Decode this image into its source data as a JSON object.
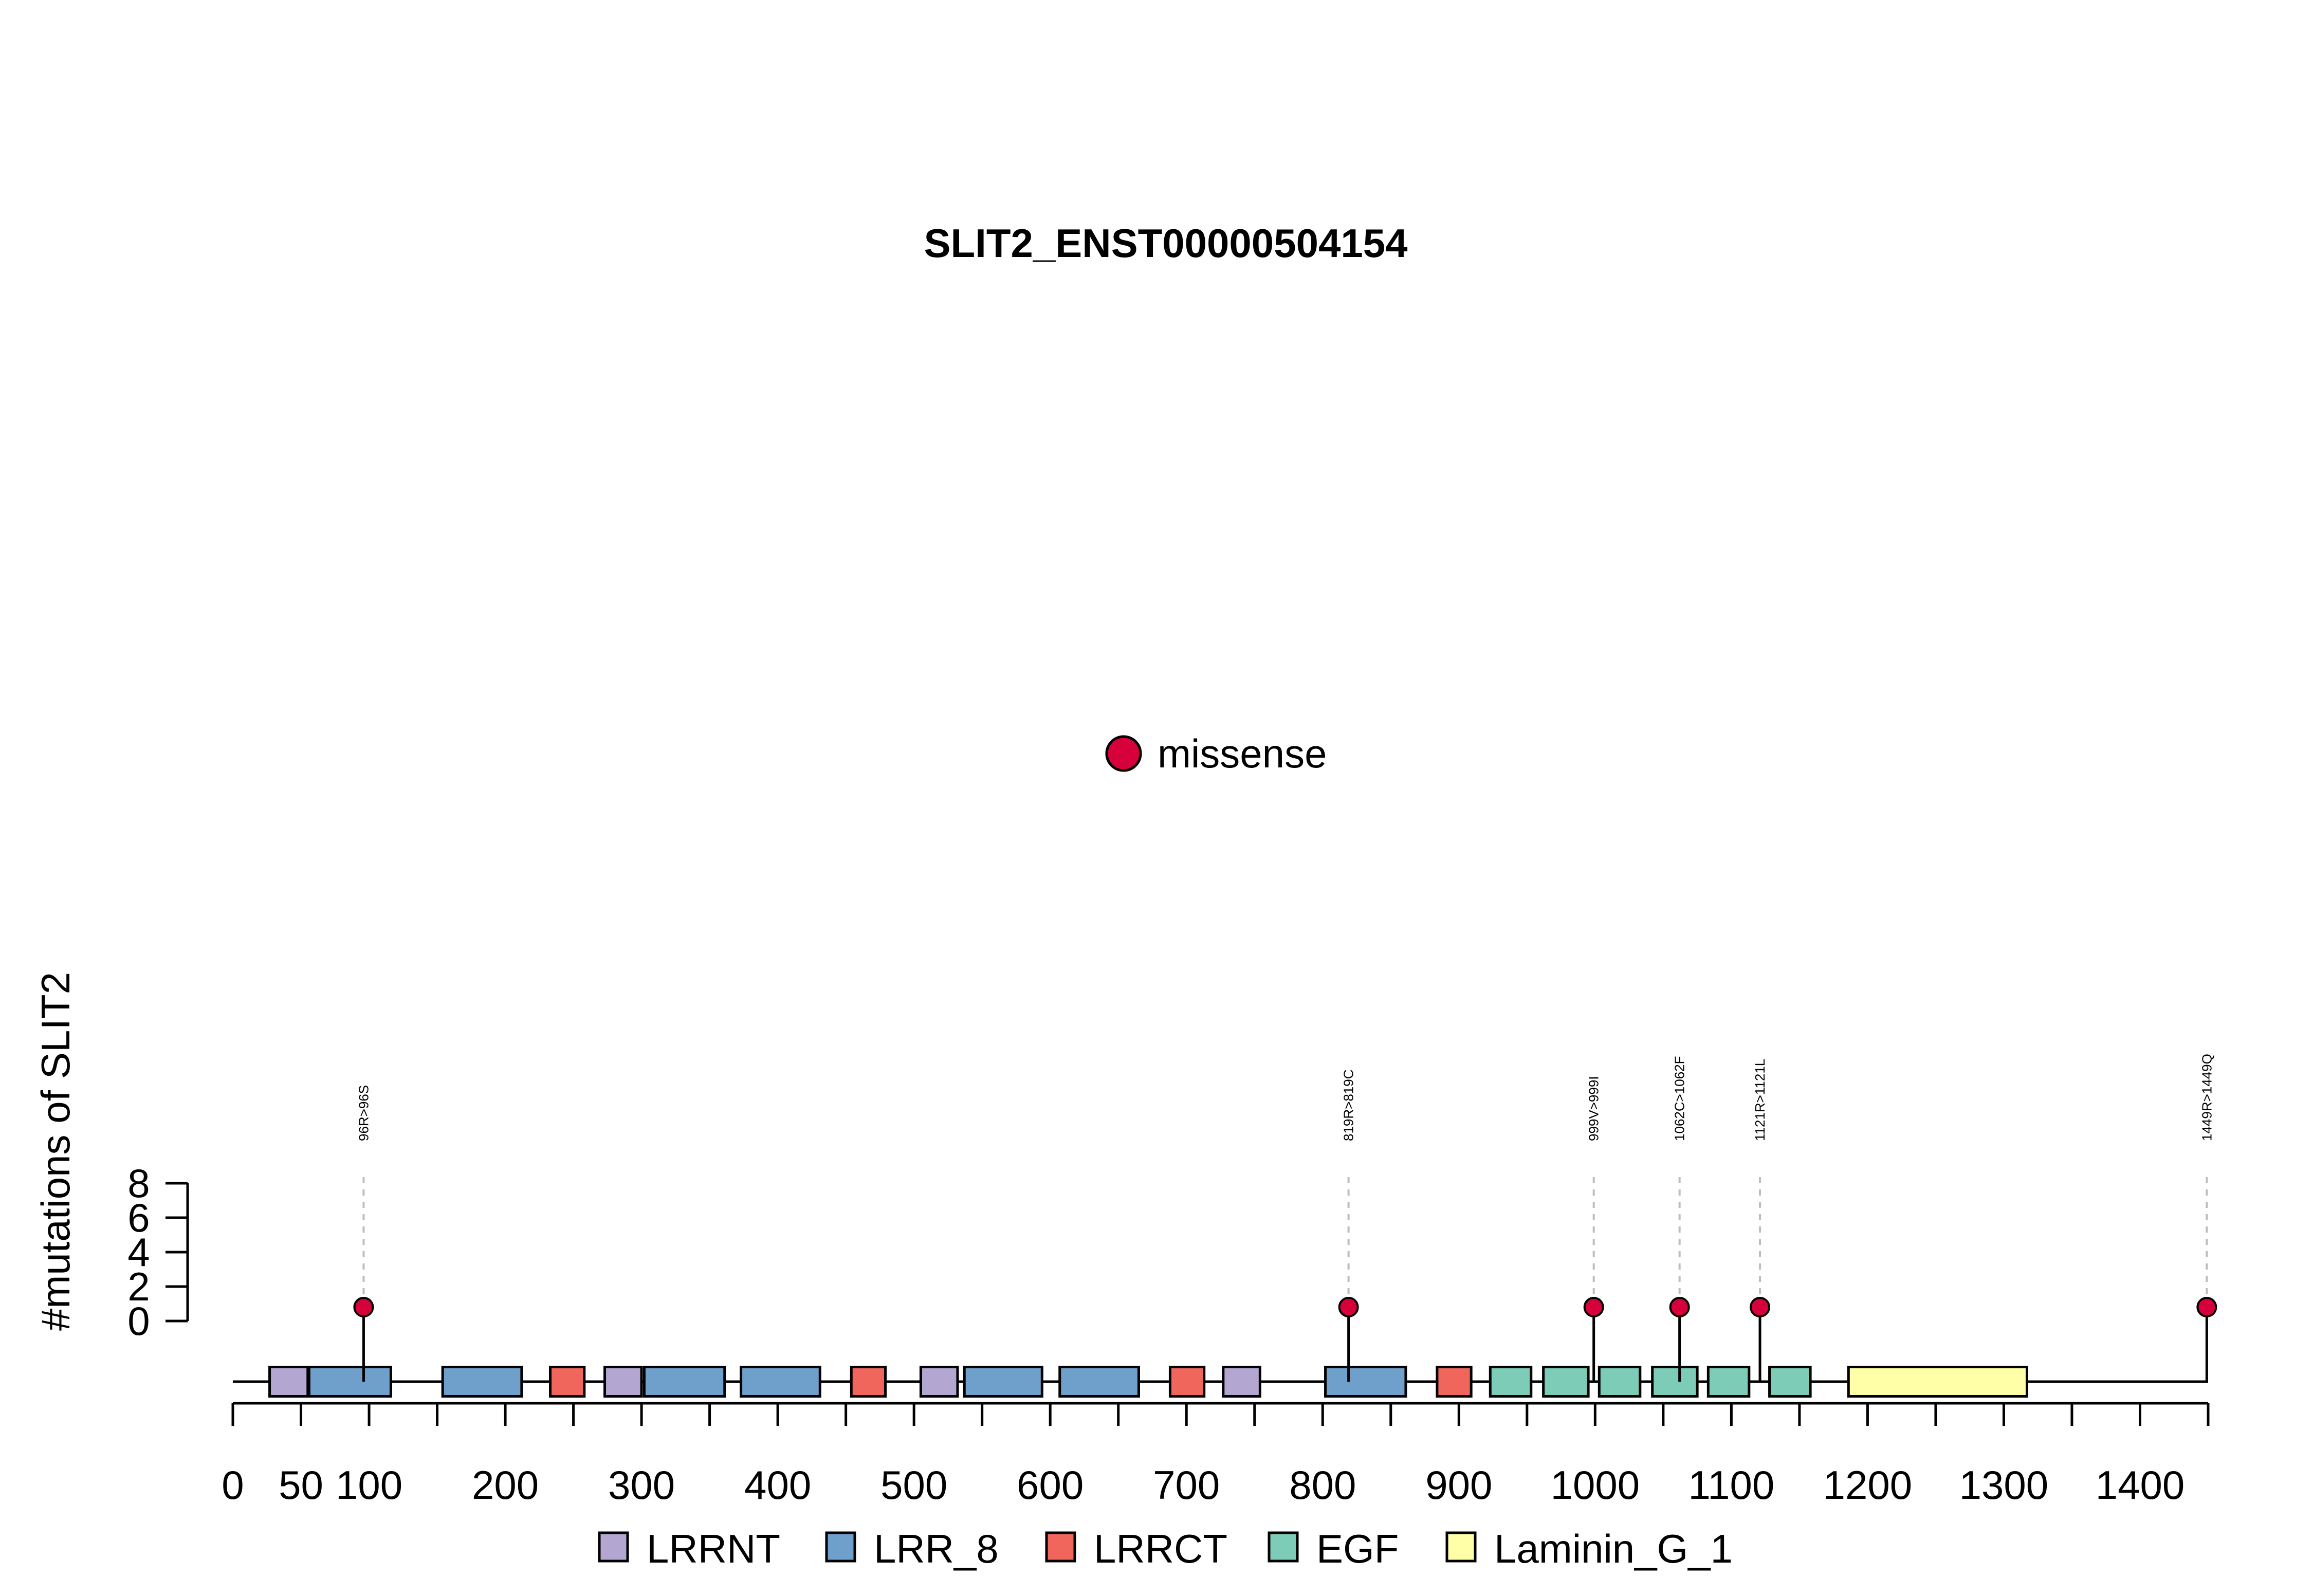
{
  "chart_data": {
    "type": "lollipop",
    "title": "SLIT2_ENST00000504154",
    "ylabel": "#mutations of SLIT2",
    "ylim": [
      0,
      8
    ],
    "yticks": [
      0,
      2,
      4,
      6,
      8
    ],
    "xlim": [
      0,
      1450
    ],
    "xticks": [
      0,
      50,
      100,
      200,
      300,
      400,
      500,
      600,
      700,
      800,
      900,
      1000,
      1100,
      1200,
      1300,
      1400
    ],
    "mutation_legend": {
      "label": "missense",
      "color": "#D6003B"
    },
    "mutations": [
      {
        "position": 96,
        "label": "96R>96S",
        "count": 1,
        "type": "missense"
      },
      {
        "position": 819,
        "label": "819R>819C",
        "count": 1,
        "type": "missense"
      },
      {
        "position": 999,
        "label": "999V>999I",
        "count": 1,
        "type": "missense"
      },
      {
        "position": 1062,
        "label": "1062C>1062F",
        "count": 1,
        "type": "missense"
      },
      {
        "position": 1121,
        "label": "1121R>1121L",
        "count": 1,
        "type": "missense"
      },
      {
        "position": 1449,
        "label": "1449R>1449Q",
        "count": 1,
        "type": "missense"
      }
    ],
    "domain_types": [
      {
        "name": "LRRNT",
        "color": "#B3A6D1"
      },
      {
        "name": "LRR_8",
        "color": "#6F9FCB"
      },
      {
        "name": "LRRCT",
        "color": "#F1665C"
      },
      {
        "name": "EGF",
        "color": "#7CCCB7"
      },
      {
        "name": "Laminin_G_1",
        "color": "#FFFFA8"
      }
    ],
    "domains": [
      {
        "name": "LRRNT",
        "start": 27,
        "end": 55
      },
      {
        "name": "LRR_8",
        "start": 56,
        "end": 116
      },
      {
        "name": "LRR_8",
        "start": 154,
        "end": 212
      },
      {
        "name": "LRRCT",
        "start": 233,
        "end": 258
      },
      {
        "name": "LRRNT",
        "start": 273,
        "end": 300
      },
      {
        "name": "LRR_8",
        "start": 302,
        "end": 361
      },
      {
        "name": "LRR_8",
        "start": 373,
        "end": 431
      },
      {
        "name": "LRRCT",
        "start": 454,
        "end": 479
      },
      {
        "name": "LRRNT",
        "start": 505,
        "end": 532
      },
      {
        "name": "LRR_8",
        "start": 537,
        "end": 594
      },
      {
        "name": "LRR_8",
        "start": 607,
        "end": 665
      },
      {
        "name": "LRRCT",
        "start": 688,
        "end": 713
      },
      {
        "name": "LRRNT",
        "start": 727,
        "end": 754
      },
      {
        "name": "LRR_8",
        "start": 802,
        "end": 861
      },
      {
        "name": "LRRCT",
        "start": 884,
        "end": 909
      },
      {
        "name": "EGF",
        "start": 923,
        "end": 953
      },
      {
        "name": "EGF",
        "start": 962,
        "end": 995
      },
      {
        "name": "EGF",
        "start": 1003,
        "end": 1033
      },
      {
        "name": "EGF",
        "start": 1042,
        "end": 1075
      },
      {
        "name": "EGF",
        "start": 1083,
        "end": 1113
      },
      {
        "name": "EGF",
        "start": 1128,
        "end": 1158
      },
      {
        "name": "Laminin_G_1",
        "start": 1186,
        "end": 1317
      }
    ]
  }
}
